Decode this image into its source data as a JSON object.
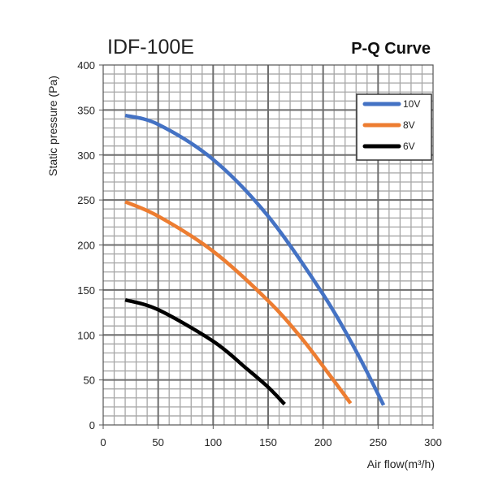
{
  "chart_data": {
    "type": "line",
    "title": "IDF-100E",
    "subtitle": "P-Q Curve",
    "xlabel": "Air flow(m³/h)",
    "ylabel": "Static pressure (Pa)",
    "xlim": [
      0,
      300
    ],
    "ylim": [
      0,
      400
    ],
    "x_ticks": [
      0,
      50,
      100,
      150,
      200,
      250,
      300
    ],
    "y_ticks": [
      0,
      50,
      100,
      150,
      200,
      250,
      300,
      350,
      400
    ],
    "x_tick_labels": [
      "0",
      "50",
      "100",
      "150",
      "200",
      "250",
      "300"
    ],
    "y_tick_labels": [
      "0",
      "50",
      "100",
      "150",
      "200",
      "250",
      "300",
      "350",
      "400"
    ],
    "grid": true,
    "legend_position": "top-right",
    "series": [
      {
        "name": "10V",
        "color": "#4472C4",
        "x": [
          20,
          50,
          100,
          150,
          200,
          230,
          255
        ],
        "y": [
          344,
          334,
          295,
          232,
          145,
          82,
          22
        ]
      },
      {
        "name": "8V",
        "color": "#ED7D31",
        "x": [
          20,
          50,
          100,
          150,
          180,
          205,
          225
        ],
        "y": [
          248,
          232,
          193,
          138,
          97,
          57,
          24
        ]
      },
      {
        "name": "6V",
        "color": "#000000",
        "x": [
          20,
          50,
          100,
          130,
          150,
          165
        ],
        "y": [
          139,
          128,
          93,
          63,
          42,
          23
        ]
      }
    ]
  }
}
